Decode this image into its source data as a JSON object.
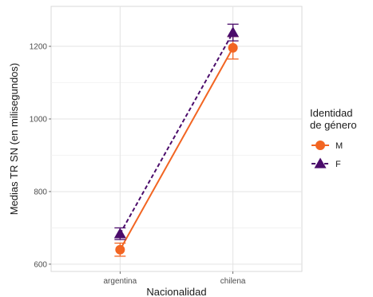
{
  "chart_data": {
    "type": "line",
    "xlabel": "Nacionalidad",
    "ylabel": "Medias TR SN (en milisegundos)",
    "categories": [
      "argentina",
      "chilena"
    ],
    "ylim": [
      580,
      1310
    ],
    "yticks": [
      600,
      800,
      1000,
      1200
    ],
    "grid": true,
    "legend": {
      "title": [
        "Identidad",
        "de género"
      ],
      "placement": "right"
    },
    "series": [
      {
        "name": "M",
        "values": [
          640,
          1196
        ],
        "error_low": [
          622,
          1165
        ],
        "error_high": [
          658,
          1227
        ],
        "color": "#f26522",
        "marker": "circle",
        "line_style": "solid"
      },
      {
        "name": "F",
        "values": [
          684,
          1238
        ],
        "error_low": [
          668,
          1215
        ],
        "error_high": [
          700,
          1261
        ],
        "color": "#4b0c6b",
        "marker": "triangle",
        "line_style": "dashed"
      }
    ]
  }
}
